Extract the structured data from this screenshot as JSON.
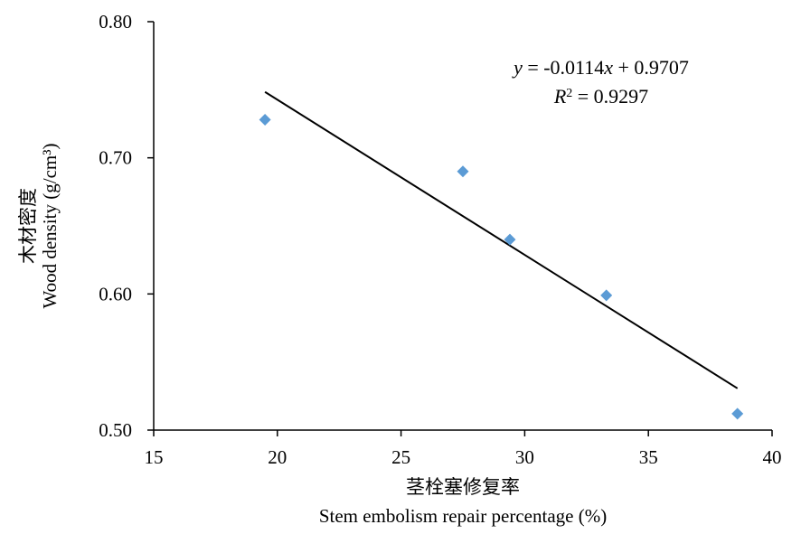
{
  "chart_data": {
    "type": "scatter",
    "xlabel_cn": "茎栓塞修复率",
    "xlabel_en": "Stem embolism repair percentage (%)",
    "ylabel_cn": "木材密度",
    "ylabel_en": "Wood density (g/cm³)",
    "xlim": [
      15,
      40
    ],
    "ylim": [
      0.5,
      0.8
    ],
    "x_ticks": [
      "15",
      "20",
      "25",
      "30",
      "35",
      "40"
    ],
    "y_ticks": [
      "0.50",
      "0.60",
      "0.70",
      "0.80"
    ],
    "points": [
      {
        "x": 19.5,
        "y": 0.728
      },
      {
        "x": 27.5,
        "y": 0.69
      },
      {
        "x": 29.4,
        "y": 0.64
      },
      {
        "x": 33.3,
        "y": 0.599
      },
      {
        "x": 38.6,
        "y": 0.512
      }
    ],
    "trendline": {
      "slope": -0.0114,
      "intercept": 0.9707,
      "x_from": 19.5,
      "x_to": 38.6
    },
    "equation": {
      "y_var": "y",
      "eq_mid": " = -0.0114",
      "x_var": "x",
      "eq_tail": " + 0.9707",
      "r_var": "R",
      "r_sup": "2",
      "r_tail": " = 0.9297"
    },
    "marker_color": "#5b9bd5",
    "line_color": "#000000",
    "grid": false,
    "legend": "none"
  }
}
